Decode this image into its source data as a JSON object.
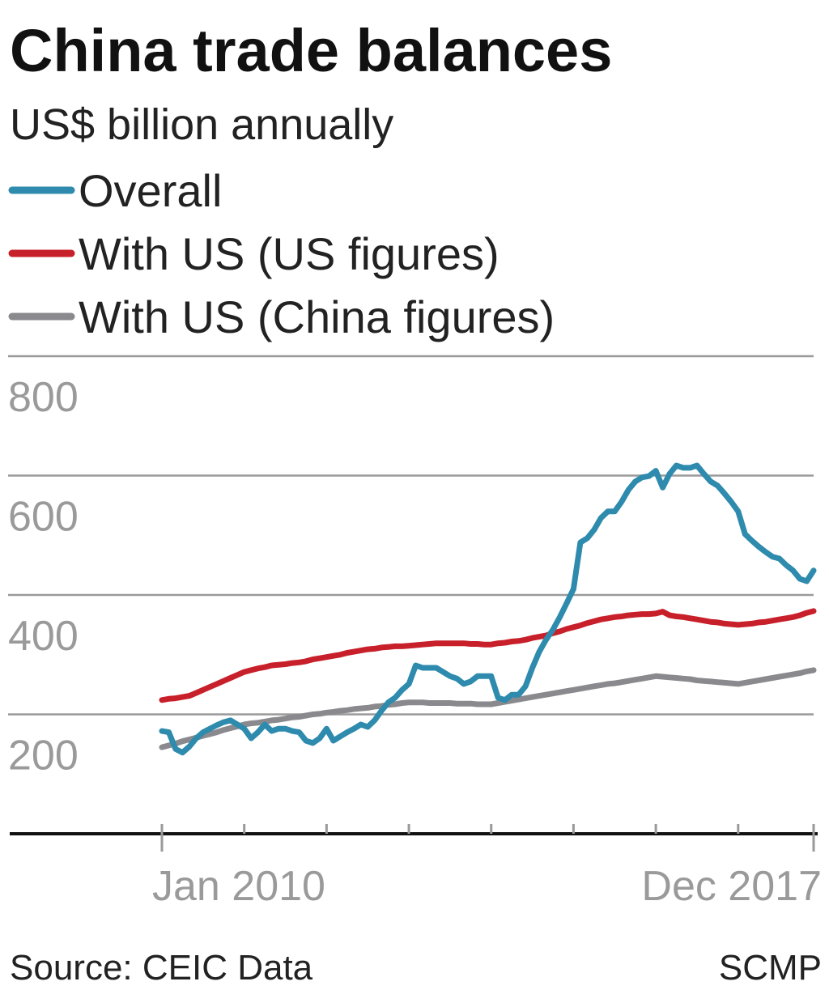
{
  "chart_data": {
    "type": "line",
    "title": "China trade balances",
    "subtitle": "US$ billion annually",
    "categories": [
      "Jan 2010",
      null,
      null,
      null,
      null,
      null,
      null,
      null,
      null,
      null,
      null,
      null,
      null,
      null,
      null,
      null,
      null,
      null,
      null,
      null,
      null,
      null,
      null,
      null,
      null,
      null,
      null,
      null,
      null,
      null,
      null,
      null,
      null,
      null,
      null,
      null,
      null,
      null,
      null,
      null,
      null,
      null,
      null,
      null,
      null,
      null,
      null,
      null,
      null,
      null,
      null,
      null,
      null,
      null,
      null,
      null,
      null,
      null,
      null,
      null,
      null,
      null,
      null,
      null,
      null,
      null,
      null,
      null,
      null,
      null,
      null,
      null,
      null,
      null,
      null,
      null,
      null,
      null,
      null,
      null,
      null,
      null,
      null,
      null,
      null,
      null,
      null,
      null,
      null,
      null,
      null,
      null,
      null,
      null,
      null,
      "Dec 2017"
    ],
    "series": [
      {
        "name": "Overall",
        "color": "#2e8bad",
        "values": [
          172,
          170,
          142,
          136,
          146,
          160,
          170,
          176,
          182,
          187,
          190,
          183,
          176,
          160,
          170,
          183,
          172,
          176,
          176,
          172,
          170,
          156,
          152,
          160,
          176,
          156,
          163,
          170,
          176,
          183,
          179,
          190,
          206,
          220,
          228,
          241,
          251,
          282,
          278,
          278,
          278,
          271,
          264,
          260,
          251,
          255,
          264,
          264,
          264,
          228,
          224,
          233,
          233,
          247,
          278,
          305,
          325,
          342,
          363,
          386,
          410,
          488,
          495,
          509,
          529,
          540,
          540,
          556,
          576,
          590,
          597,
          599,
          608,
          580,
          603,
          617,
          613,
          613,
          617,
          603,
          590,
          583,
          570,
          556,
          540,
          502,
          491,
          481,
          472,
          464,
          461,
          450,
          441,
          427,
          423,
          441
        ]
      },
      {
        "name": "With US (US figures)",
        "color": "#c8202a",
        "values": [
          224,
          226,
          227,
          229,
          231,
          236,
          241,
          246,
          251,
          256,
          261,
          266,
          271,
          274,
          277,
          279,
          282,
          283,
          284,
          286,
          287,
          289,
          292,
          294,
          296,
          298,
          300,
          303,
          305,
          307,
          309,
          310,
          312,
          313,
          314,
          314,
          315,
          316,
          317,
          318,
          319,
          319,
          319,
          319,
          319,
          318,
          318,
          317,
          317,
          319,
          320,
          322,
          323,
          325,
          328,
          330,
          332,
          336,
          339,
          343,
          346,
          349,
          353,
          356,
          359,
          361,
          363,
          364,
          366,
          367,
          368,
          368,
          369,
          372,
          366,
          364,
          363,
          361,
          359,
          357,
          355,
          354,
          352,
          351,
          350,
          351,
          352,
          354,
          355,
          357,
          359,
          361,
          363,
          366,
          370,
          373
        ]
      },
      {
        "name": "With US (China figures)",
        "color": "#8a8a8e",
        "values": [
          145,
          148,
          151,
          155,
          158,
          161,
          164,
          167,
          170,
          174,
          177,
          180,
          183,
          185,
          186,
          188,
          190,
          191,
          193,
          195,
          196,
          198,
          200,
          201,
          203,
          204,
          206,
          207,
          209,
          210,
          211,
          213,
          214,
          216,
          217,
          219,
          220,
          220,
          220,
          219,
          219,
          219,
          219,
          218,
          218,
          218,
          217,
          217,
          217,
          219,
          221,
          223,
          225,
          227,
          229,
          231,
          233,
          235,
          237,
          239,
          241,
          243,
          245,
          247,
          249,
          251,
          252,
          254,
          256,
          258,
          260,
          262,
          264,
          263,
          262,
          261,
          260,
          259,
          257,
          256,
          255,
          254,
          253,
          252,
          251,
          253,
          255,
          257,
          259,
          261,
          263,
          265,
          267,
          269,
          272,
          274
        ]
      }
    ],
    "ylim": [
      0,
      800
    ],
    "yticks": [
      200,
      400,
      600,
      800
    ],
    "grid": true,
    "source": "Source: CEIC Data",
    "credit": "SCMP"
  }
}
